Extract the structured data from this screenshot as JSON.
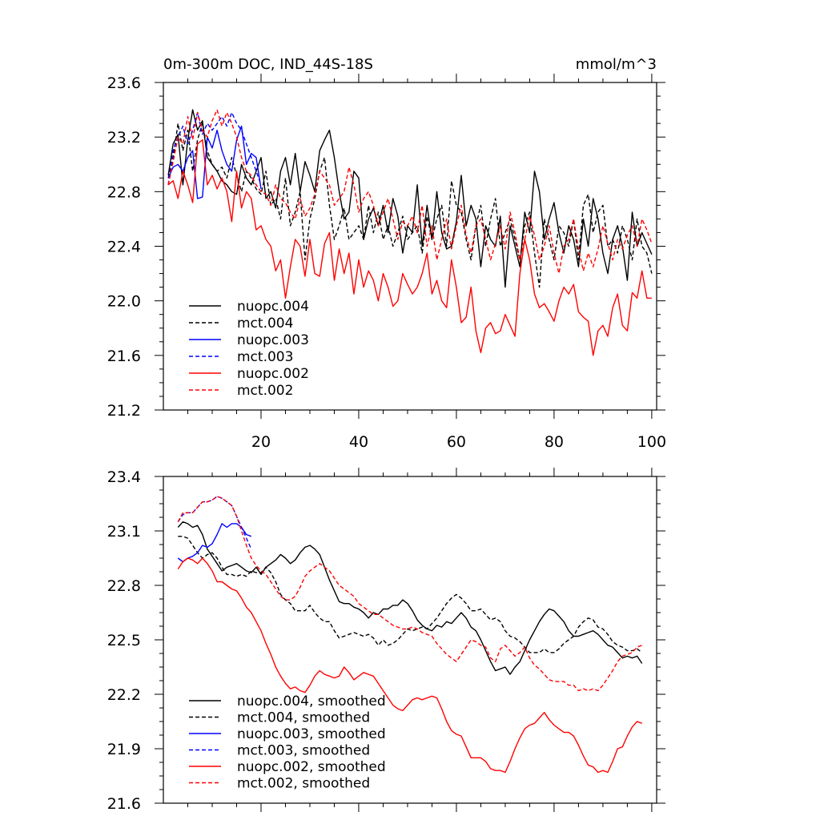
{
  "chart_data": [
    {
      "type": "line",
      "title": "0m-300m DOC, IND_44S-18S",
      "units": "mmol/m^3",
      "xlabel": "",
      "ylabel": "",
      "xlim": [
        0,
        101
      ],
      "ylim": [
        21.2,
        23.6
      ],
      "xticks": [
        20,
        40,
        60,
        80,
        100
      ],
      "yticks": [
        21.2,
        21.6,
        22.0,
        22.4,
        22.8,
        23.2,
        23.6
      ],
      "ytick_labels": [
        "21.2",
        "21.6",
        "22.0",
        "22.4",
        "22.8",
        "23.2",
        "23.6"
      ],
      "legend_position": "bottom-left",
      "series": [
        {
          "name": "nuopc.004",
          "color": "#000000",
          "dash": "solid",
          "x_start": 1,
          "values": [
            22.92,
            23.15,
            23.22,
            22.85,
            23.18,
            23.4,
            23.25,
            23.32,
            23.05,
            23.0,
            22.95,
            22.88,
            22.85,
            22.8,
            22.78,
            23.0,
            22.9,
            22.85,
            22.95,
            23.05,
            22.75,
            22.8,
            22.68,
            22.95,
            23.05,
            22.85,
            23.08,
            22.8,
            23.02,
            22.92,
            22.8,
            23.1,
            23.18,
            23.25,
            23.05,
            22.8,
            22.6,
            22.65,
            22.95,
            22.9,
            22.45,
            22.6,
            22.68,
            22.55,
            22.7,
            22.5,
            22.75,
            22.62,
            22.35,
            22.55,
            22.5,
            22.85,
            22.4,
            22.7,
            22.45,
            22.8,
            22.5,
            22.38,
            22.4,
            22.58,
            22.92,
            22.55,
            22.7,
            22.6,
            22.25,
            22.55,
            22.45,
            22.4,
            22.62,
            22.1,
            22.55,
            22.4,
            22.25,
            22.65,
            22.5,
            22.95,
            22.8,
            22.45,
            22.6,
            22.72,
            22.5,
            22.35,
            22.55,
            22.45,
            22.25,
            22.6,
            22.4,
            22.75,
            22.6,
            22.35,
            22.2,
            22.45,
            22.55,
            22.4,
            22.15,
            22.65,
            22.4,
            22.5,
            22.42,
            22.34
          ]
        },
        {
          "name": "mct.004",
          "color": "#000000",
          "dash": "dashed",
          "x_start": 1,
          "values": [
            22.9,
            23.05,
            23.3,
            23.1,
            23.25,
            22.95,
            23.18,
            23.3,
            23.1,
            23.0,
            22.95,
            22.98,
            22.9,
            23.05,
            22.92,
            22.8,
            22.95,
            22.9,
            22.82,
            22.78,
            22.95,
            22.7,
            22.75,
            22.6,
            22.9,
            22.55,
            22.65,
            22.8,
            22.3,
            22.6,
            22.75,
            22.95,
            23.05,
            22.7,
            22.45,
            22.55,
            22.68,
            22.45,
            22.5,
            22.55,
            22.45,
            22.7,
            22.5,
            22.65,
            22.45,
            22.55,
            22.4,
            22.5,
            22.62,
            22.45,
            22.5,
            22.55,
            22.35,
            22.62,
            22.45,
            22.6,
            22.7,
            22.4,
            22.88,
            22.7,
            22.65,
            22.45,
            22.3,
            22.55,
            22.7,
            22.4,
            22.6,
            22.75,
            22.4,
            22.5,
            22.6,
            22.45,
            22.3,
            22.55,
            22.65,
            22.35,
            22.1,
            22.6,
            22.45,
            22.3,
            22.55,
            22.5,
            22.4,
            22.6,
            22.3,
            22.7,
            22.78,
            22.5,
            22.65,
            22.7,
            22.4,
            22.45,
            22.35,
            22.55,
            22.45,
            22.3,
            22.6,
            22.4,
            22.35,
            22.2
          ]
        },
        {
          "name": "nuopc.003",
          "color": "#0000ff",
          "dash": "solid",
          "x_start": 1,
          "values": [
            22.9,
            22.98,
            23.0,
            22.95,
            23.05,
            23.1,
            22.75,
            22.76,
            23.2,
            23.12,
            23.25,
            23.1,
            23.0,
            22.95,
            23.18,
            23.28,
            23.0,
            23.08,
            23.05,
            22.82
          ]
        },
        {
          "name": "mct.003",
          "color": "#0000ff",
          "dash": "dashed",
          "x_start": 1,
          "values": [
            22.85,
            23.1,
            23.2,
            23.28,
            23.15,
            23.25,
            23.38,
            23.22,
            23.3,
            23.25,
            23.3,
            23.35,
            23.28,
            23.38,
            23.3,
            23.25,
            23.15,
            23.05,
            22.95,
            22.85
          ]
        },
        {
          "name": "nuopc.002",
          "color": "#ff0000",
          "dash": "solid",
          "x_start": 1,
          "values": [
            22.85,
            22.88,
            22.75,
            22.95,
            22.85,
            22.72,
            23.15,
            23.18,
            22.85,
            22.92,
            22.82,
            22.9,
            22.8,
            22.58,
            22.95,
            22.68,
            22.8,
            22.75,
            22.52,
            22.55,
            22.45,
            22.4,
            22.22,
            22.3,
            22.02,
            22.25,
            22.45,
            22.4,
            22.18,
            22.45,
            22.2,
            22.18,
            22.42,
            22.5,
            22.15,
            22.38,
            22.2,
            22.35,
            22.05,
            22.3,
            22.1,
            22.22,
            22.15,
            22.0,
            22.2,
            22.1,
            21.96,
            22.0,
            22.2,
            22.12,
            22.05,
            22.1,
            22.2,
            22.35,
            22.05,
            22.15,
            22.0,
            21.95,
            22.3,
            22.1,
            21.84,
            21.88,
            22.1,
            21.78,
            21.62,
            21.8,
            21.84,
            21.76,
            21.78,
            21.9,
            21.82,
            21.74,
            22.2,
            22.45,
            22.3,
            22.05,
            21.95,
            21.98,
            21.92,
            21.85,
            22.0,
            22.1,
            22.05,
            22.12,
            21.92,
            21.88,
            21.85,
            21.6,
            21.78,
            21.82,
            21.74,
            21.95,
            22.05,
            21.82,
            21.78,
            22.06,
            22.02,
            22.22,
            22.02,
            22.02
          ]
        },
        {
          "name": "mct.002",
          "color": "#ff0000",
          "dash": "dashed",
          "x_start": 1,
          "values": [
            22.85,
            23.02,
            23.2,
            23.15,
            23.35,
            23.18,
            23.38,
            23.25,
            23.2,
            23.32,
            23.4,
            23.28,
            23.38,
            23.3,
            23.2,
            23.05,
            22.95,
            22.92,
            22.85,
            22.8,
            22.78,
            22.7,
            22.85,
            22.75,
            22.72,
            22.65,
            22.6,
            22.75,
            22.62,
            22.68,
            22.78,
            22.95,
            22.9,
            22.85,
            22.7,
            22.75,
            22.8,
            22.98,
            22.85,
            22.65,
            22.75,
            22.8,
            22.7,
            22.55,
            22.65,
            22.75,
            22.6,
            22.45,
            22.58,
            22.55,
            22.62,
            22.5,
            22.7,
            22.4,
            22.55,
            22.3,
            22.45,
            22.6,
            22.38,
            22.55,
            22.7,
            22.48,
            22.35,
            22.55,
            22.6,
            22.45,
            22.3,
            22.42,
            22.55,
            22.38,
            22.65,
            22.5,
            22.3,
            22.45,
            22.62,
            22.48,
            22.3,
            22.4,
            22.55,
            22.35,
            22.2,
            22.4,
            22.45,
            22.6,
            22.38,
            22.22,
            22.35,
            22.25,
            22.38,
            22.55,
            22.42,
            22.3,
            22.45,
            22.38,
            22.48,
            22.55,
            22.4,
            22.6,
            22.52,
            22.42
          ]
        }
      ]
    },
    {
      "type": "line",
      "title": "",
      "xlabel": "",
      "ylabel": "",
      "xlim": [
        0,
        101
      ],
      "ylim": [
        21.6,
        23.4
      ],
      "xticks": [
        20,
        40,
        60,
        80,
        100
      ],
      "yticks": [
        21.6,
        21.9,
        22.2,
        22.5,
        22.8,
        23.1,
        23.4
      ],
      "ytick_labels": [
        "21.6",
        "21.9",
        "22.2",
        "22.5",
        "22.8",
        "23.1",
        "23.4"
      ],
      "legend_position": "bottom-left",
      "series": [
        {
          "name": "nuopc.004, smoothed",
          "color": "#000000",
          "dash": "solid",
          "x_start": 3,
          "values": [
            23.12,
            23.15,
            23.14,
            23.12,
            23.13,
            23.08,
            23.0,
            22.96,
            22.92,
            22.88,
            22.9,
            22.91,
            22.92,
            22.9,
            22.88,
            22.87,
            22.9,
            22.86,
            22.9,
            22.92,
            22.94,
            22.97,
            22.95,
            22.92,
            22.94,
            22.98,
            23.01,
            23.02,
            23.0,
            22.97,
            22.9,
            22.83,
            22.77,
            22.71,
            22.7,
            22.7,
            22.68,
            22.67,
            22.65,
            22.62,
            22.65,
            22.64,
            22.67,
            22.67,
            22.69,
            22.69,
            22.72,
            22.7,
            22.66,
            22.61,
            22.58,
            22.56,
            22.55,
            22.58,
            22.57,
            22.6,
            22.59,
            22.62,
            22.65,
            22.62,
            22.57,
            22.55,
            22.5,
            22.44,
            22.38,
            22.33,
            22.34,
            22.35,
            22.31,
            22.35,
            22.38,
            22.44,
            22.5,
            22.55,
            22.6,
            22.64,
            22.67,
            22.66,
            22.63,
            22.6,
            22.55,
            22.52,
            22.52,
            22.53,
            22.54,
            22.55,
            22.53,
            22.5,
            22.47,
            22.46,
            22.43,
            22.4,
            22.41,
            22.4,
            22.41,
            22.37
          ]
        },
        {
          "name": "mct.004, smoothed",
          "color": "#000000",
          "dash": "dashed",
          "x_start": 3,
          "values": [
            23.07,
            23.07,
            23.06,
            23.02,
            22.98,
            22.95,
            22.97,
            22.98,
            22.95,
            22.9,
            22.86,
            22.86,
            22.85,
            22.86,
            22.85,
            22.88,
            22.87,
            22.87,
            22.9,
            22.87,
            22.82,
            22.75,
            22.72,
            22.7,
            22.66,
            22.66,
            22.66,
            22.69,
            22.65,
            22.62,
            22.6,
            22.6,
            22.55,
            22.51,
            22.52,
            22.53,
            22.54,
            22.53,
            22.52,
            22.53,
            22.51,
            22.47,
            22.5,
            22.47,
            22.48,
            22.5,
            22.53,
            22.56,
            22.55,
            22.56,
            22.57,
            22.56,
            22.59,
            22.62,
            22.66,
            22.7,
            22.73,
            22.75,
            22.73,
            22.7,
            22.66,
            22.66,
            22.67,
            22.64,
            22.61,
            22.62,
            22.6,
            22.55,
            22.52,
            22.51,
            22.49,
            22.46,
            22.43,
            22.43,
            22.43,
            22.45,
            22.43,
            22.43,
            22.45,
            22.48,
            22.5,
            22.52,
            22.57,
            22.6,
            22.62,
            22.61,
            22.57,
            22.56,
            22.53,
            22.49,
            22.47,
            22.46,
            22.44,
            22.44,
            22.45,
            22.43
          ]
        },
        {
          "name": "nuopc.003, smoothed",
          "color": "#0000ff",
          "dash": "solid",
          "x_start": 3,
          "values": [
            22.95,
            22.93,
            22.95,
            22.96,
            22.98,
            23.02,
            23.01,
            23.03,
            23.08,
            23.14,
            23.12,
            23.14,
            23.14,
            23.12,
            23.08,
            23.07
          ]
        },
        {
          "name": "mct.003, smoothed",
          "color": "#0000ff",
          "dash": "dashed",
          "x_start": 3,
          "values": [
            23.15,
            23.19,
            23.2,
            23.2,
            23.23,
            23.26,
            23.26,
            23.27,
            23.29,
            23.28,
            23.26,
            23.24,
            23.18,
            23.12,
            23.06,
            23.0
          ]
        },
        {
          "name": "nuopc.002, smoothed",
          "color": "#ff0000",
          "dash": "solid",
          "x_start": 3,
          "values": [
            22.89,
            22.93,
            22.95,
            22.94,
            22.92,
            22.95,
            22.92,
            22.88,
            22.82,
            22.82,
            22.8,
            22.78,
            22.77,
            22.73,
            22.68,
            22.65,
            22.6,
            22.55,
            22.48,
            22.42,
            22.35,
            22.3,
            22.26,
            22.23,
            22.24,
            22.22,
            22.21,
            22.25,
            22.3,
            22.33,
            22.31,
            22.3,
            22.29,
            22.3,
            22.35,
            22.32,
            22.28,
            22.3,
            22.32,
            22.31,
            22.3,
            22.26,
            22.22,
            22.18,
            22.14,
            22.12,
            22.11,
            22.14,
            22.17,
            22.18,
            22.17,
            22.18,
            22.19,
            22.18,
            22.12,
            22.05,
            22.0,
            21.98,
            21.97,
            21.91,
            21.85,
            21.85,
            21.85,
            21.83,
            21.79,
            21.78,
            21.78,
            21.77,
            21.83,
            21.9,
            21.96,
            22.01,
            22.03,
            22.04,
            22.07,
            22.1,
            22.06,
            22.03,
            22.01,
            21.99,
            21.99,
            21.97,
            21.92,
            21.86,
            21.81,
            21.8,
            21.77,
            21.78,
            21.77,
            21.83,
            21.9,
            21.91,
            21.97,
            22.02,
            22.05,
            22.04
          ]
        },
        {
          "name": "mct.002, smoothed",
          "color": "#ff0000",
          "dash": "dashed",
          "x_start": 3,
          "values": [
            23.15,
            23.2,
            23.2,
            23.2,
            23.23,
            23.26,
            23.26,
            23.27,
            23.29,
            23.28,
            23.26,
            23.24,
            23.18,
            23.1,
            23.02,
            22.95,
            22.91,
            22.88,
            22.86,
            22.82,
            22.78,
            22.74,
            22.72,
            22.72,
            22.74,
            22.79,
            22.85,
            22.88,
            22.9,
            22.92,
            22.9,
            22.88,
            22.84,
            22.8,
            22.78,
            22.76,
            22.74,
            22.7,
            22.68,
            22.66,
            22.64,
            22.64,
            22.62,
            22.6,
            22.58,
            22.57,
            22.56,
            22.56,
            22.57,
            22.56,
            22.54,
            22.53,
            22.52,
            22.48,
            22.45,
            22.42,
            22.4,
            22.38,
            22.42,
            22.46,
            22.5,
            22.49,
            22.47,
            22.46,
            22.4,
            22.38,
            22.45,
            22.47,
            22.44,
            22.41,
            22.43,
            22.46,
            22.4,
            22.36,
            22.34,
            22.31,
            22.28,
            22.27,
            22.27,
            22.27,
            22.25,
            22.25,
            22.22,
            22.23,
            22.22,
            22.23,
            22.22,
            22.25,
            22.29,
            22.33,
            22.38,
            22.41,
            22.42,
            22.43,
            22.46,
            22.47
          ]
        }
      ]
    }
  ]
}
